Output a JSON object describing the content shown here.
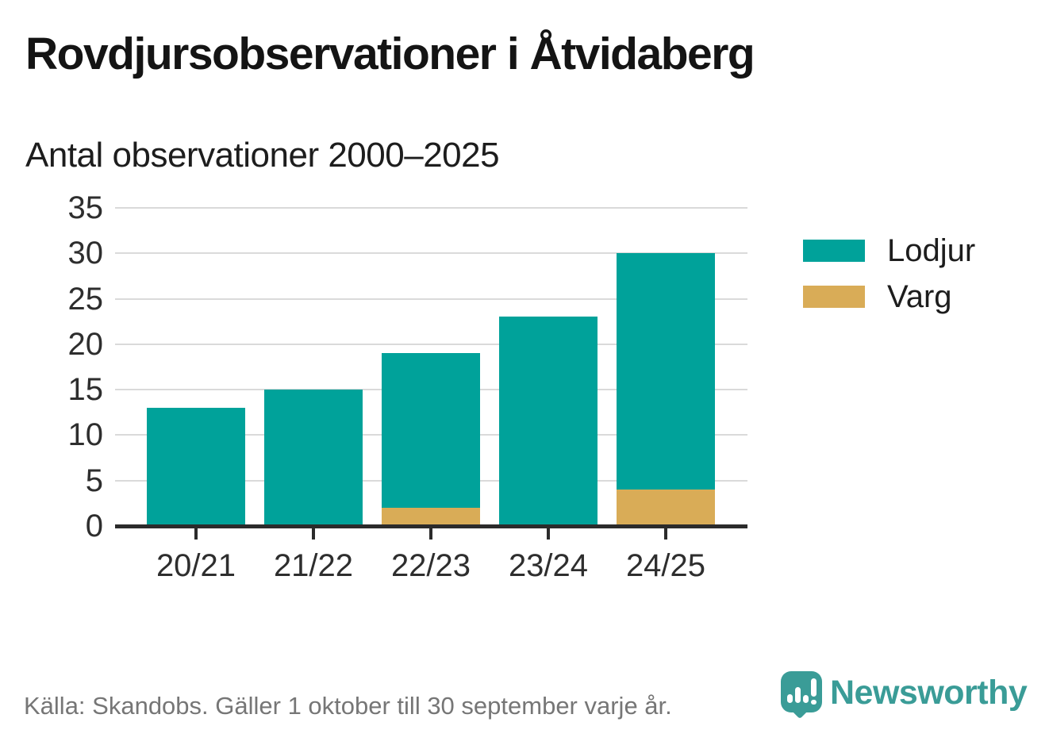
{
  "header": {
    "title": "Rovdjursobservationer i Åtvidaberg"
  },
  "chart_data": {
    "type": "bar",
    "stacked": true,
    "title": "Antal observationer 2000–2025",
    "categories": [
      "20/21",
      "21/22",
      "22/23",
      "23/24",
      "24/25"
    ],
    "series": [
      {
        "name": "Lodjur",
        "color": "#00a29a",
        "values": [
          13,
          15,
          17,
          23,
          26
        ]
      },
      {
        "name": "Varg",
        "color": "#d9ac57",
        "values": [
          0,
          0,
          2,
          0,
          4
        ]
      }
    ],
    "stack_order_bottom_to_top": [
      "Varg",
      "Lodjur"
    ],
    "totals": [
      13,
      15,
      19,
      23,
      30
    ],
    "xlabel": "",
    "ylabel": "",
    "ylim": [
      0,
      35
    ],
    "ytick_step": 5,
    "yticks": [
      0,
      5,
      10,
      15,
      20,
      25,
      30,
      35
    ],
    "grid": true,
    "legend_position": "right",
    "gridline_color": "#dadada",
    "axis_color": "#2b2b2b"
  },
  "footer": {
    "source": "Källa: Skandobs. Gäller 1 oktober till 30 september varje år.",
    "brand": "Newsworthy",
    "brand_color": "#3a9c97"
  }
}
